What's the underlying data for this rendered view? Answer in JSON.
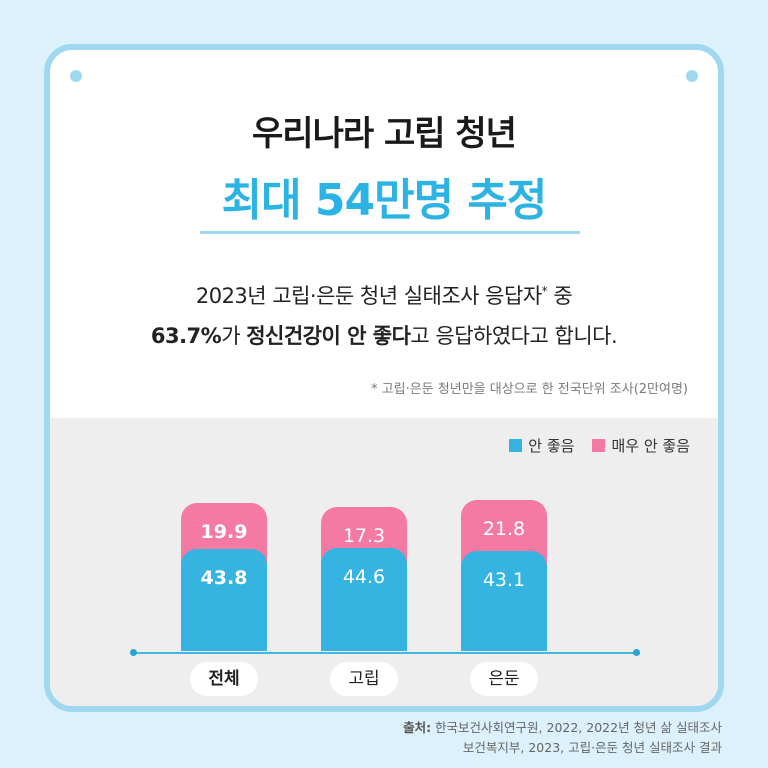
{
  "header": {
    "title_line1": "우리나라 고립 청년",
    "title_line2": "최대 54만명 추정"
  },
  "description": {
    "line1_text": "2023년 고립·은둔 청년 실태조사 응답자",
    "line1_mark": "*",
    "line1_end": " 중",
    "line2_bold1": "63.7%",
    "line2_mid1": "가 ",
    "line2_bold2": "정신건강이 안 좋다",
    "line2_end": "고 응답하였다고 합니다.",
    "footnote": "* 고립·은둔 청년만을 대상으로 한 전국단위 조사(2만여명)"
  },
  "colors": {
    "accent": "#2bb3e3",
    "not_good": "#35b3e1",
    "very_bad": "#f57aa3",
    "frame": "#9fd8ef"
  },
  "chart_data": {
    "type": "bar",
    "stacked": true,
    "categories": [
      "전체",
      "고립",
      "은둔"
    ],
    "series": [
      {
        "name": "안 좋음",
        "values": [
          43.8,
          44.6,
          43.1
        ]
      },
      {
        "name": "매우 안 좋음",
        "values": [
          19.9,
          17.3,
          21.8
        ]
      }
    ],
    "legend": [
      "안 좋음",
      "매우 안 좋음"
    ],
    "legend_position": "top-right",
    "labels_bottom": [
      "43.8",
      "44.6",
      "43.1"
    ],
    "labels_top": [
      "19.9",
      "17.3",
      "21.8"
    ],
    "highlight_category": "전체",
    "ylim": [
      0,
      70
    ],
    "grid": false
  },
  "source": {
    "label": "출처:",
    "line1": " 한국보건사회연구원, 2022, 2022년 청년 삶 실태조사",
    "line2": "보건복지부, 2023, 고립·은둔 청년 실태조사 결과"
  }
}
